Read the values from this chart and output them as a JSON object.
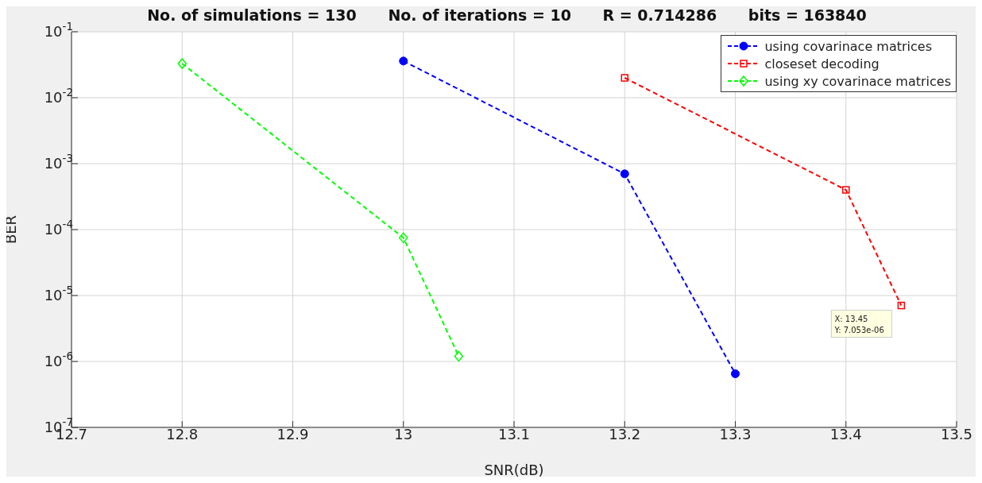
{
  "chart_data": {
    "type": "line",
    "title": "No. of simulations = 130      No. of iterations = 10      R = 0.714286      bits = 163840",
    "xlabel": "SNR(dB)",
    "ylabel": "BER",
    "log": "y",
    "grid": true,
    "legend": "top right",
    "line_style": "dashed",
    "xlim": [
      12.7,
      13.5
    ],
    "xticks": [
      12.7,
      12.8,
      12.9,
      13,
      13.1,
      13.2,
      13.3,
      13.4,
      13.5
    ],
    "ylim": [
      1e-07,
      0.1
    ],
    "yticks": [
      {
        "value": 1e-07,
        "label": "10$^{-7}$"
      },
      {
        "value": 1e-06,
        "label": "10$^{-6}$"
      },
      {
        "value": 1e-05,
        "label": "10$^{-5}$"
      },
      {
        "value": 0.0001,
        "label": "10$^{-4}$"
      },
      {
        "value": 0.001,
        "label": "10$^{-3}$"
      },
      {
        "value": 0.01,
        "label": "10$^{-2}$"
      },
      {
        "value": 0.1,
        "label": "10$^{-1}$"
      }
    ],
    "series": [
      {
        "name": "using covarinace matrices",
        "color": "#0000ff",
        "marker": "circle",
        "x": [
          13,
          13.2,
          13.3
        ],
        "values": [
          0.036,
          0.0007,
          6.5e-07
        ]
      },
      {
        "name": "closeset decoding",
        "color": "#ff0000",
        "marker": "square",
        "x": [
          13.2,
          13.4,
          13.45
        ],
        "values": [
          0.02,
          0.0004,
          7.053e-06
        ]
      },
      {
        "name": "using xy covarinace matrices",
        "color": "#00ff00",
        "marker": "diamond",
        "x": [
          12.8,
          13,
          13.05
        ],
        "values": [
          0.033,
          7.5e-05,
          1.2e-06
        ]
      }
    ],
    "annotations": [
      {
        "text": "X: 13.45\nY: 7.053e-06",
        "x": 13.45,
        "y": 7.053e-06
      }
    ]
  }
}
